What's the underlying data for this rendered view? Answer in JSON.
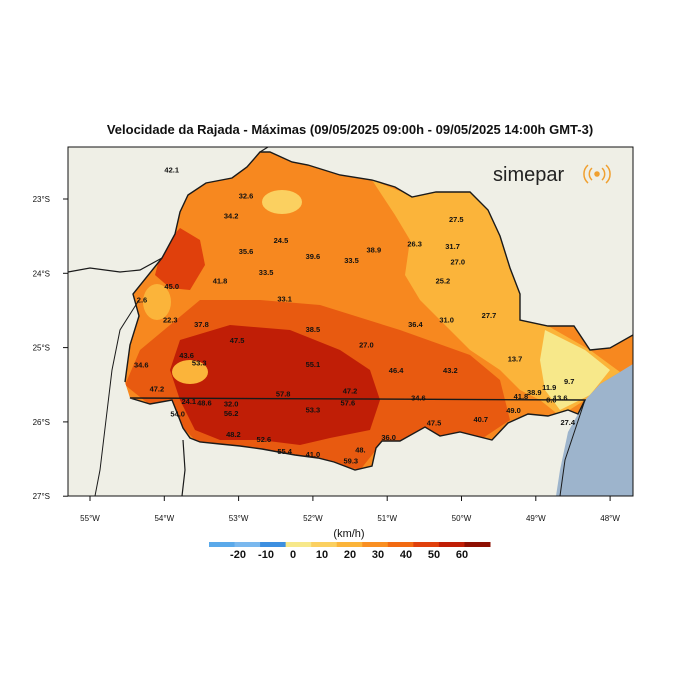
{
  "title": "Velocidade da Rajada - Máximas (09/05/2025 09:00h - 09/05/2025 14:00h GMT-3)",
  "logo_text": "simepar",
  "logo_icon": "signal-waves-icon",
  "lat_ticks": [
    "23°S",
    "24°S",
    "25°S",
    "26°S",
    "27°S"
  ],
  "lon_ticks": [
    "55°W",
    "54°W",
    "53°W",
    "52°W",
    "51°W",
    "50°W",
    "49°W",
    "48°W"
  ],
  "colorbar": {
    "unit": "(km/h)",
    "labels": [
      "-20",
      "-10",
      "0",
      "10",
      "20",
      "30",
      "40",
      "50",
      "60"
    ],
    "colors": [
      "#5aa9ea",
      "#7ab8ee",
      "#3d8fe0",
      "#f7e88a",
      "#fbd060",
      "#fbb43a",
      "#f98f22",
      "#f26a12",
      "#e0400c",
      "#c01e06",
      "#8e0f02"
    ]
  },
  "colors": {
    "land_outside": "#efefe6",
    "ocean": "#9db4cc",
    "border": "#1a1a1a"
  },
  "stations": [
    {
      "value": "42.1",
      "lon": -53.9,
      "lat": -22.6
    },
    {
      "value": "32.6",
      "lon": -52.9,
      "lat": -22.95
    },
    {
      "value": "34.2",
      "lon": -53.1,
      "lat": -23.22
    },
    {
      "value": "24.5",
      "lon": -52.43,
      "lat": -23.55
    },
    {
      "value": "35.6",
      "lon": -52.9,
      "lat": -23.7
    },
    {
      "value": "39.6",
      "lon": -52.0,
      "lat": -23.77
    },
    {
      "value": "33.5",
      "lon": -51.48,
      "lat": -23.82
    },
    {
      "value": "38.9",
      "lon": -51.18,
      "lat": -23.68
    },
    {
      "value": "26.3",
      "lon": -50.63,
      "lat": -23.6
    },
    {
      "value": "27.5",
      "lon": -50.07,
      "lat": -23.27
    },
    {
      "value": "31.7",
      "lon": -50.12,
      "lat": -23.63
    },
    {
      "value": "27.0",
      "lon": -50.05,
      "lat": -23.84
    },
    {
      "value": "33.5",
      "lon": -52.63,
      "lat": -23.98
    },
    {
      "value": "41.8",
      "lon": -53.25,
      "lat": -24.1
    },
    {
      "value": "45.0",
      "lon": -53.9,
      "lat": -24.17
    },
    {
      "value": "25.2",
      "lon": -50.25,
      "lat": -24.1
    },
    {
      "value": "33.1",
      "lon": -52.38,
      "lat": -24.34
    },
    {
      "value": "27.7",
      "lon": -49.63,
      "lat": -24.56
    },
    {
      "value": "2.6",
      "lon": -54.3,
      "lat": -24.35
    },
    {
      "value": "22.3",
      "lon": -53.92,
      "lat": -24.62
    },
    {
      "value": "37.8",
      "lon": -53.5,
      "lat": -24.68
    },
    {
      "value": "36.4",
      "lon": -50.62,
      "lat": -24.68
    },
    {
      "value": "31.0",
      "lon": -50.2,
      "lat": -24.62
    },
    {
      "value": "38.5",
      "lon": -52.0,
      "lat": -24.75
    },
    {
      "value": "47.5",
      "lon": -53.02,
      "lat": -24.9
    },
    {
      "value": "27.0",
      "lon": -51.28,
      "lat": -24.96
    },
    {
      "value": "43.6",
      "lon": -53.7,
      "lat": -25.1
    },
    {
      "value": "53.3",
      "lon": -53.53,
      "lat": -25.2
    },
    {
      "value": "55.1",
      "lon": -52.0,
      "lat": -25.22
    },
    {
      "value": "13.7",
      "lon": -49.28,
      "lat": -25.15
    },
    {
      "value": "34.6",
      "lon": -54.31,
      "lat": -25.23
    },
    {
      "value": "46.4",
      "lon": -50.88,
      "lat": -25.3
    },
    {
      "value": "43.2",
      "lon": -50.15,
      "lat": -25.3
    },
    {
      "value": "9.7",
      "lon": -48.55,
      "lat": -25.45
    },
    {
      "value": "11.9",
      "lon": -48.82,
      "lat": -25.53
    },
    {
      "value": "47.2",
      "lon": -54.1,
      "lat": -25.55
    },
    {
      "value": "57.8",
      "lon": -52.4,
      "lat": -25.62
    },
    {
      "value": "47.2",
      "lon": -51.5,
      "lat": -25.58
    },
    {
      "value": "38.9",
      "lon": -49.02,
      "lat": -25.6
    },
    {
      "value": "41.8",
      "lon": -49.2,
      "lat": -25.65
    },
    {
      "value": "13.6",
      "lon": -48.67,
      "lat": -25.67
    },
    {
      "value": "0.0",
      "lon": -48.79,
      "lat": -25.7
    },
    {
      "value": "24.1",
      "lon": -53.67,
      "lat": -25.72
    },
    {
      "value": "48.6",
      "lon": -53.46,
      "lat": -25.74
    },
    {
      "value": "32.0",
      "lon": -53.1,
      "lat": -25.75
    },
    {
      "value": "57.6",
      "lon": -51.53,
      "lat": -25.74
    },
    {
      "value": "34.6",
      "lon": -50.58,
      "lat": -25.67
    },
    {
      "value": "53.3",
      "lon": -52.0,
      "lat": -25.83
    },
    {
      "value": "49.0",
      "lon": -49.3,
      "lat": -25.84
    },
    {
      "value": "54.0",
      "lon": -53.82,
      "lat": -25.89
    },
    {
      "value": "56.2",
      "lon": -53.1,
      "lat": -25.88
    },
    {
      "value": "40.7",
      "lon": -49.74,
      "lat": -25.96
    },
    {
      "value": "47.5",
      "lon": -50.37,
      "lat": -26.01
    },
    {
      "value": "27.4",
      "lon": -48.57,
      "lat": -26.0
    },
    {
      "value": "48.2",
      "lon": -53.07,
      "lat": -26.16
    },
    {
      "value": "52.6",
      "lon": -52.66,
      "lat": -26.23
    },
    {
      "value": "36.0",
      "lon": -50.98,
      "lat": -26.2
    },
    {
      "value": "55.4",
      "lon": -52.38,
      "lat": -26.39
    },
    {
      "value": "41.0",
      "lon": -52.0,
      "lat": -26.43
    },
    {
      "value": "48.",
      "lon": -51.36,
      "lat": -26.37
    },
    {
      "value": "59.3",
      "lon": -51.49,
      "lat": -26.52
    }
  ]
}
